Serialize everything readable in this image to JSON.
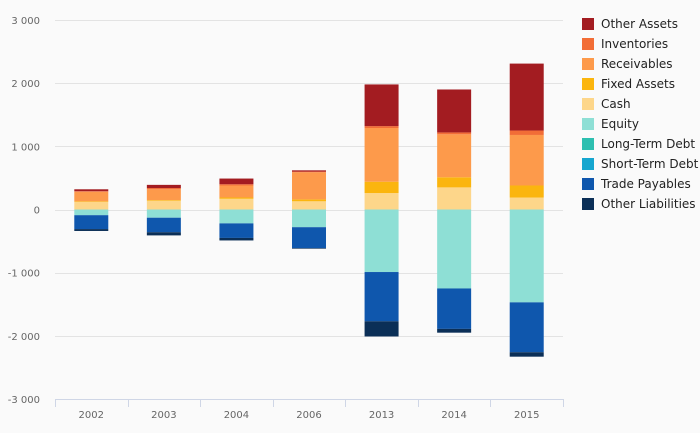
{
  "chart_data": {
    "type": "bar",
    "stacked": true,
    "categories": [
      "2002",
      "2003",
      "2004",
      "2006",
      "2013",
      "2014",
      "2015"
    ],
    "ylim": [
      -3000,
      3000
    ],
    "yticks": [
      3000,
      2000,
      1000,
      0,
      -1000,
      -2000,
      -3000
    ],
    "ytick_labels": [
      "3 000",
      "2 000",
      "1 000",
      "0",
      "-1 000",
      "-2 000",
      "-3 000"
    ],
    "grid": true,
    "legend_position": "right",
    "series": [
      {
        "name": "Other Assets",
        "color": "#a31c21",
        "values": [
          30,
          50,
          90,
          20,
          660,
          680,
          1060
        ]
      },
      {
        "name": "Inventories",
        "color": "#f26d36",
        "values": [
          10,
          20,
          20,
          10,
          30,
          30,
          70
        ]
      },
      {
        "name": "Receivables",
        "color": "#fd9a4b",
        "values": [
          150,
          170,
          190,
          430,
          850,
          680,
          800
        ]
      },
      {
        "name": "Fixed Assets",
        "color": "#fbb50e",
        "values": [
          10,
          10,
          20,
          30,
          180,
          160,
          190
        ]
      },
      {
        "name": "Cash",
        "color": "#fdd68a",
        "values": [
          120,
          140,
          170,
          130,
          260,
          350,
          190
        ]
      },
      {
        "name": "Equity",
        "color": "#8edfd5",
        "values": [
          -90,
          -130,
          -220,
          -280,
          -990,
          -1250,
          -1470
        ]
      },
      {
        "name": "Long-Term Debt",
        "color": "#2ebfb0",
        "values": [
          0,
          0,
          0,
          0,
          0,
          0,
          0
        ]
      },
      {
        "name": "Short-Term Debt",
        "color": "#16a6cf",
        "values": [
          0,
          0,
          0,
          0,
          0,
          0,
          0
        ]
      },
      {
        "name": "Trade Payables",
        "color": "#0f57ad",
        "values": [
          -220,
          -230,
          -230,
          -330,
          -780,
          -640,
          -790
        ]
      },
      {
        "name": "Other Liabilities",
        "color": "#0b2f57",
        "values": [
          -30,
          -50,
          -40,
          -10,
          -240,
          -60,
          -70
        ]
      }
    ]
  }
}
